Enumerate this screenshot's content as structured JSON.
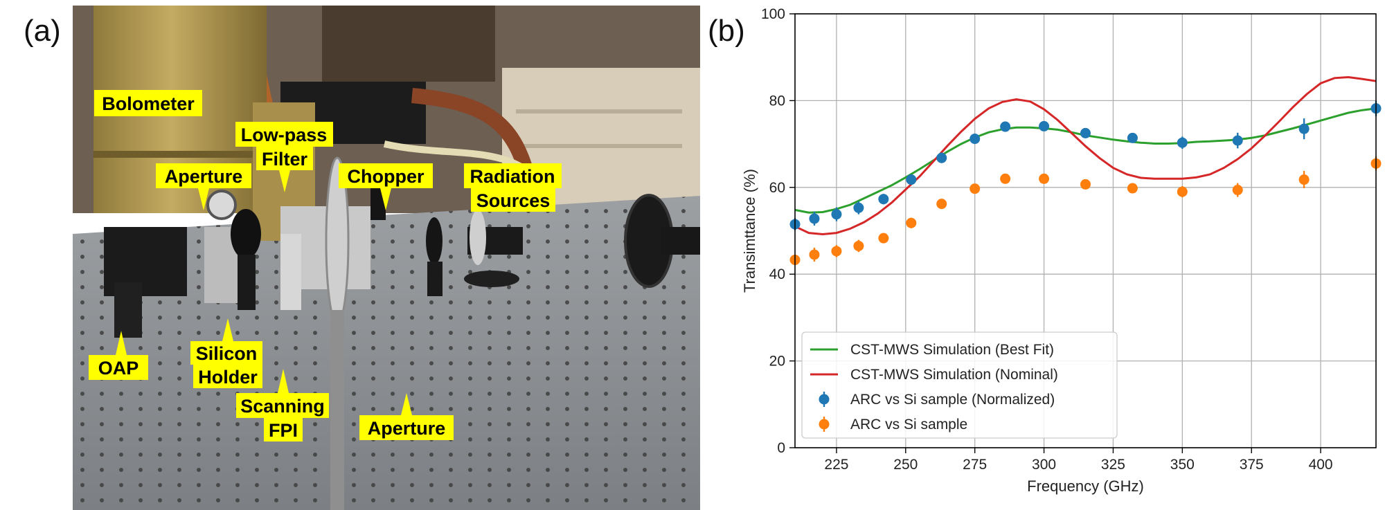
{
  "panel_a": {
    "letter": "(a)",
    "labels": {
      "bolometer": "Bolometer",
      "lowpass_1": "Low-pass",
      "lowpass_2": "Filter",
      "aperture_left": "Aperture",
      "chopper": "Chopper",
      "radiation_1": "Radiation",
      "radiation_2": "Sources",
      "oap": "OAP",
      "silicon_1": "Silicon",
      "silicon_2": "Holder",
      "scanning_1": "Scanning",
      "scanning_2": "FPI",
      "aperture_right": "Aperture"
    }
  },
  "panel_b": {
    "letter": "(b)"
  },
  "chart_data": {
    "type": "line",
    "title": "",
    "xlabel": "Frequency (GHz)",
    "ylabel": "Transimttance (%)",
    "xlim": [
      210,
      420
    ],
    "ylim": [
      0,
      100
    ],
    "xticks": [
      225,
      250,
      275,
      300,
      325,
      350,
      375,
      400
    ],
    "yticks": [
      0,
      20,
      40,
      60,
      80,
      100
    ],
    "grid": true,
    "legend": "lower-left",
    "series": [
      {
        "name": "CST-MWS Simulation (Best Fit)",
        "kind": "line",
        "color": "#2ca02c",
        "x": [
          210,
          215,
          220,
          225,
          230,
          235,
          240,
          245,
          250,
          255,
          260,
          265,
          270,
          275,
          280,
          285,
          290,
          295,
          300,
          305,
          310,
          315,
          320,
          325,
          330,
          335,
          340,
          345,
          350,
          355,
          360,
          365,
          370,
          375,
          380,
          385,
          390,
          395,
          400,
          405,
          410,
          415,
          420
        ],
        "y": [
          54.8,
          54.2,
          54.3,
          55.0,
          56.0,
          57.5,
          59.0,
          60.5,
          62.3,
          64.2,
          66.2,
          68.2,
          70.0,
          71.5,
          72.7,
          73.4,
          73.8,
          73.8,
          73.6,
          73.3,
          72.7,
          72.0,
          71.5,
          71.0,
          70.6,
          70.3,
          70.1,
          70.1,
          70.2,
          70.5,
          70.6,
          70.8,
          71.0,
          71.4,
          72.0,
          72.8,
          73.6,
          74.5,
          75.4,
          76.3,
          77.2,
          77.8,
          78.2
        ]
      },
      {
        "name": "CST-MWS Simulation (Nominal)",
        "kind": "line",
        "color": "#d62728",
        "x": [
          210,
          215,
          220,
          225,
          230,
          235,
          240,
          245,
          250,
          255,
          260,
          265,
          270,
          275,
          280,
          285,
          290,
          295,
          300,
          305,
          310,
          315,
          320,
          325,
          330,
          335,
          340,
          345,
          350,
          355,
          360,
          365,
          370,
          375,
          380,
          385,
          390,
          395,
          400,
          405,
          410,
          415,
          420
        ],
        "y": [
          51.0,
          49.5,
          49.2,
          49.5,
          50.5,
          52.0,
          54.0,
          56.5,
          59.5,
          62.5,
          66.0,
          69.5,
          72.8,
          75.8,
          78.2,
          79.7,
          80.3,
          79.8,
          78.0,
          75.5,
          72.5,
          69.5,
          66.8,
          64.5,
          63.0,
          62.2,
          62.0,
          62.0,
          62.0,
          62.3,
          63.0,
          64.5,
          66.5,
          69.0,
          72.0,
          75.2,
          78.5,
          81.5,
          84.0,
          85.2,
          85.4,
          85.0,
          84.5
        ]
      },
      {
        "name": "ARC vs Si sample (Normalized)",
        "kind": "errorbar",
        "color": "#1f77b4",
        "x": [
          210,
          217,
          225,
          233,
          242,
          252,
          263,
          275,
          286,
          300,
          315,
          332,
          350,
          370,
          394,
          420
        ],
        "y": [
          51.5,
          52.8,
          53.8,
          55.3,
          57.3,
          61.8,
          66.8,
          71.2,
          74.0,
          74.1,
          72.5,
          71.4,
          70.3,
          70.8,
          73.5,
          78.2
        ],
        "err": [
          1.4,
          1.6,
          1.6,
          1.5,
          1.2,
          1.2,
          1.2,
          1.2,
          1.2,
          1.1,
          1.1,
          1.0,
          1.4,
          1.8,
          2.4,
          1.8
        ]
      },
      {
        "name": "ARC vs Si sample",
        "kind": "errorbar",
        "color": "#ff7f0e",
        "x": [
          210,
          217,
          225,
          233,
          242,
          252,
          263,
          275,
          286,
          300,
          315,
          332,
          350,
          370,
          394,
          420
        ],
        "y": [
          43.3,
          44.5,
          45.3,
          46.5,
          48.3,
          51.8,
          56.2,
          59.7,
          62.0,
          62.0,
          60.7,
          59.8,
          59.0,
          59.4,
          61.8,
          65.5
        ],
        "err": [
          1.2,
          1.6,
          1.4,
          1.4,
          1.1,
          1.2,
          1.0,
          1.0,
          1.0,
          1.0,
          1.0,
          0.9,
          1.3,
          1.6,
          2.0,
          1.6
        ]
      }
    ]
  }
}
